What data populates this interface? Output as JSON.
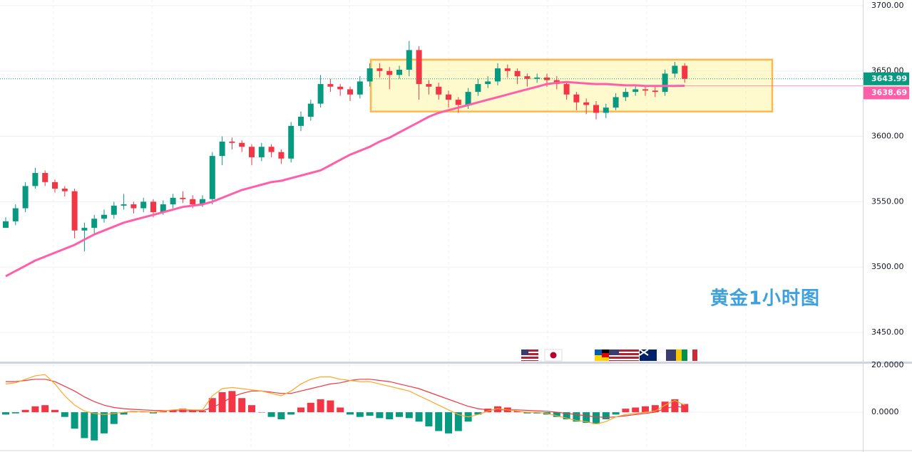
{
  "chart_data": [
    {
      "type": "candlestick",
      "ylim": [
        3427.7,
        3704.3
      ],
      "yticks": [
        {
          "value": 3450,
          "label": "3450.00"
        },
        {
          "value": 3500,
          "label": "3500.00"
        },
        {
          "value": 3550,
          "label": "3550.00"
        },
        {
          "value": 3600,
          "label": "3600.00"
        },
        {
          "value": 3650,
          "label": "3650.00"
        },
        {
          "value": 3700,
          "label": "3700.00"
        }
      ],
      "grid": true,
      "up_color": "#089981",
      "down_color": "#f23645",
      "candles": {
        "open": [
          3530,
          3535,
          3545,
          3562,
          3572,
          3565,
          3560,
          3558,
          3528,
          3530,
          3537,
          3540,
          3547,
          3548,
          3545,
          3550,
          3542,
          3548,
          3553,
          3552,
          3548,
          3552,
          3585,
          3596,
          3595,
          3592,
          3584,
          3592,
          3588,
          3583,
          3608,
          3615,
          3625,
          3640,
          3638,
          3636,
          3632,
          3642,
          3652,
          3650,
          3647,
          3651,
          3666,
          3640,
          3638,
          3632,
          3628,
          3624,
          3634,
          3640,
          3642,
          3652,
          3650,
          3646,
          3644,
          3645,
          3643,
          3640,
          3632,
          3626,
          3624,
          3618,
          3622,
          3630,
          3634,
          3636,
          3635,
          3634,
          3648,
          3654
        ],
        "high": [
          3538,
          3548,
          3565,
          3576,
          3574,
          3567,
          3562,
          3560,
          3534,
          3540,
          3544,
          3550,
          3556,
          3550,
          3553,
          3552,
          3551,
          3556,
          3558,
          3555,
          3555,
          3588,
          3600,
          3599,
          3597,
          3594,
          3595,
          3594,
          3590,
          3611,
          3619,
          3628,
          3647,
          3644,
          3640,
          3638,
          3646,
          3656,
          3656,
          3653,
          3654,
          3673,
          3669,
          3643,
          3641,
          3635,
          3630,
          3637,
          3644,
          3646,
          3656,
          3655,
          3652,
          3648,
          3648,
          3648,
          3646,
          3642,
          3634,
          3629,
          3627,
          3625,
          3633,
          3637,
          3639,
          3639,
          3638,
          3651,
          3657,
          3656
        ],
        "low": [
          3530,
          3532,
          3542,
          3560,
          3562,
          3557,
          3554,
          3522,
          3512,
          3526,
          3534,
          3537,
          3544,
          3541,
          3542,
          3538,
          3540,
          3545,
          3549,
          3545,
          3546,
          3548,
          3578,
          3590,
          3588,
          3578,
          3581,
          3584,
          3579,
          3580,
          3604,
          3612,
          3622,
          3634,
          3631,
          3627,
          3629,
          3638,
          3645,
          3636,
          3644,
          3646,
          3628,
          3632,
          3628,
          3622,
          3618,
          3621,
          3631,
          3637,
          3639,
          3645,
          3640,
          3638,
          3641,
          3638,
          3636,
          3628,
          3620,
          3617,
          3613,
          3614,
          3620,
          3627,
          3631,
          3631,
          3630,
          3631,
          3645,
          3641
        ],
        "close": [
          3535,
          3545,
          3562,
          3572,
          3565,
          3560,
          3558,
          3528,
          3530,
          3537,
          3540,
          3547,
          3548,
          3545,
          3550,
          3542,
          3548,
          3553,
          3552,
          3548,
          3552,
          3585,
          3596,
          3595,
          3592,
          3584,
          3592,
          3588,
          3583,
          3608,
          3615,
          3625,
          3640,
          3638,
          3636,
          3632,
          3642,
          3652,
          3650,
          3647,
          3651,
          3666,
          3640,
          3638,
          3632,
          3628,
          3624,
          3634,
          3640,
          3642,
          3652,
          3650,
          3646,
          3644,
          3645,
          3643,
          3640,
          3632,
          3626,
          3624,
          3618,
          3622,
          3630,
          3634,
          3636,
          3635,
          3634,
          3648,
          3654,
          3643.99
        ]
      },
      "ma": {
        "color": "#ff5fa8",
        "values": [
          3493,
          3497,
          3501,
          3505,
          3508,
          3511,
          3514,
          3517,
          3521,
          3525,
          3528,
          3531,
          3534,
          3536,
          3538,
          3540,
          3542,
          3544,
          3546,
          3547,
          3548,
          3550,
          3553,
          3556,
          3559,
          3561,
          3563,
          3565,
          3566,
          3568,
          3570,
          3572,
          3574,
          3578,
          3582,
          3586,
          3589,
          3592,
          3596,
          3599,
          3603,
          3607,
          3611,
          3615,
          3618,
          3620,
          3622,
          3624,
          3626,
          3628,
          3630,
          3632,
          3634,
          3636,
          3638,
          3640,
          3641,
          3641.5,
          3641,
          3640.5,
          3640,
          3640,
          3639.5,
          3639,
          3639,
          3638.5,
          3638.5,
          3638.5,
          3638.6,
          3638.69
        ]
      },
      "last_price": 3643.99,
      "last_price_color": "#089981",
      "ma_price": 3638.69,
      "range_box": {
        "high": 3658.7,
        "low": 3619
      },
      "annotation": "黄金1小时图"
    },
    {
      "type": "macd",
      "ylim": [
        -16,
        20.6
      ],
      "yticks": [
        {
          "value": 0,
          "label": "0.0000"
        },
        {
          "value": 20,
          "label": "20.0000"
        }
      ],
      "histogram": {
        "up_color": "#f23645",
        "down_color": "#089981",
        "values": [
          -1,
          -0.5,
          1,
          2.5,
          3,
          1,
          -2,
          -7,
          -11,
          -12,
          -9,
          -5,
          -1,
          0.5,
          0.3,
          -0.5,
          0.5,
          1,
          1.5,
          1,
          0.5,
          6,
          8.5,
          9,
          6,
          3,
          0,
          -2,
          -3,
          -1,
          2,
          4,
          5.5,
          5,
          2,
          -1,
          -2,
          -1.5,
          -2.5,
          -3,
          -2,
          -2.5,
          -4,
          -6,
          -8,
          -9,
          -8,
          -4,
          -1,
          1.5,
          2.5,
          2,
          0.5,
          -0.5,
          -0.5,
          -1,
          -2,
          -3,
          -4,
          -4.5,
          -5,
          -3,
          -1,
          1.5,
          2,
          2.5,
          3,
          4.5,
          5.5,
          3.5
        ]
      },
      "macd": {
        "color": "#ffa726",
        "values": [
          12,
          12.5,
          14,
          15.5,
          16,
          12,
          7,
          3,
          0.5,
          -0.5,
          -1,
          -0.5,
          0,
          0.3,
          0.3,
          0,
          0.5,
          1,
          1.2,
          1,
          1,
          7,
          10,
          10.5,
          10,
          9.5,
          9,
          8,
          7,
          9,
          12,
          14,
          15,
          15,
          14,
          13.5,
          13,
          13,
          12,
          11,
          10,
          9,
          7,
          5,
          3,
          1,
          -1,
          -2,
          -1,
          0.5,
          1.5,
          1,
          0.5,
          0,
          0,
          -0.5,
          -1.5,
          -2.5,
          -3.5,
          -4,
          -5,
          -4,
          -2,
          -1,
          -0.5,
          0,
          0.5,
          3,
          5,
          3
        ]
      },
      "signal": {
        "color": "#f23645",
        "values": [
          13,
          13,
          13.5,
          14,
          14,
          13,
          11,
          9,
          6.5,
          4.5,
          3,
          2,
          1.5,
          1.2,
          1,
          0.8,
          0.7,
          0.7,
          0.6,
          0.6,
          0.6,
          2,
          4,
          6.5,
          8,
          9,
          9,
          8.5,
          8,
          8,
          9,
          10,
          11,
          12,
          12.5,
          13.5,
          14,
          14,
          13.5,
          13,
          12,
          11,
          10,
          8.5,
          7,
          5.5,
          4,
          2.5,
          1.5,
          1,
          1,
          1,
          1,
          0.8,
          0.6,
          0.4,
          0,
          -0.5,
          -1,
          -1.5,
          -2,
          -2.2,
          -2,
          -1.5,
          -1,
          -0.5,
          0,
          1.5,
          2.5,
          2
        ]
      }
    }
  ]
}
